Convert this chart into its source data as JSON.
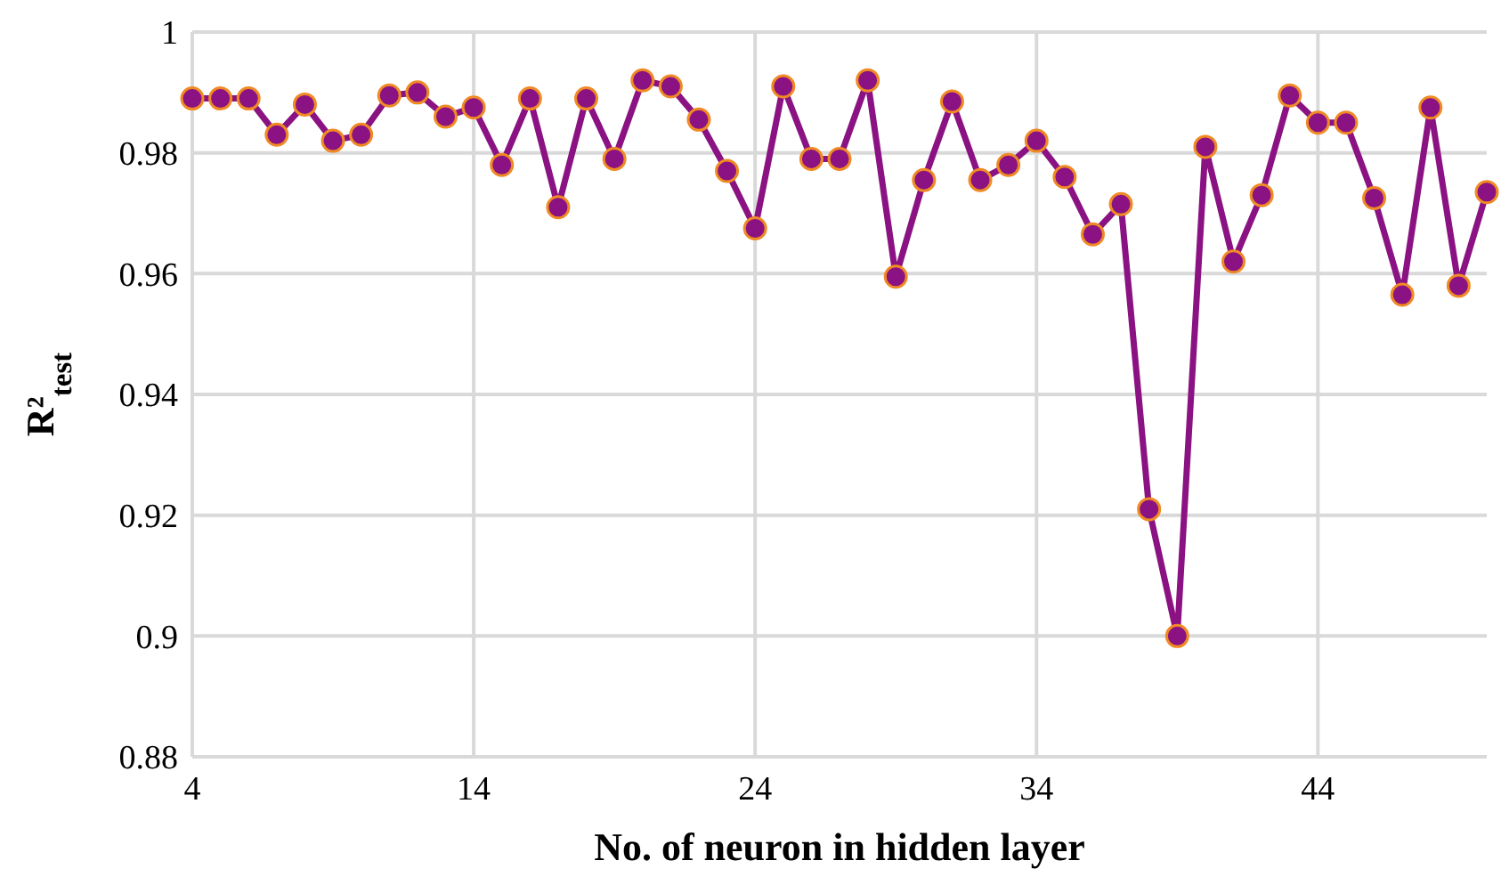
{
  "chart_data": {
    "type": "line",
    "xlabel": "No. of neuron in hidden layer",
    "ylabel": "R²$_{test}$",
    "x": [
      4,
      5,
      6,
      7,
      8,
      9,
      10,
      11,
      12,
      13,
      14,
      15,
      16,
      17,
      18,
      19,
      20,
      21,
      22,
      23,
      24,
      25,
      26,
      27,
      28,
      29,
      30,
      31,
      32,
      33,
      34,
      35,
      36,
      37,
      38,
      39,
      40,
      41,
      42,
      43,
      44,
      45,
      46,
      47,
      48,
      49,
      50
    ],
    "series": [
      {
        "color": "#8a1282",
        "values": [
          0.989,
          0.989,
          0.989,
          0.983,
          0.988,
          0.982,
          0.983,
          0.9895,
          0.99,
          0.986,
          0.9875,
          0.978,
          0.989,
          0.971,
          0.989,
          0.979,
          0.992,
          0.991,
          0.9855,
          0.977,
          0.9675,
          0.991,
          0.979,
          0.979,
          0.992,
          0.9595,
          0.9755,
          0.9885,
          0.9755,
          0.978,
          0.982,
          0.976,
          0.9665,
          0.9715,
          0.921,
          0.9,
          0.981,
          0.962,
          0.973,
          0.9895,
          0.985,
          0.985,
          0.9725,
          0.9565,
          0.9875,
          0.958,
          0.9735
        ]
      }
    ],
    "xlim": [
      4,
      50
    ],
    "xticks": [
      4,
      14,
      24,
      34,
      44
    ],
    "ylim": [
      0.88,
      1
    ],
    "yticks": [
      0.88,
      0.9,
      0.92,
      0.94,
      0.96,
      0.98,
      1
    ],
    "grid": true,
    "marker": "circle",
    "line_style": "solid"
  }
}
